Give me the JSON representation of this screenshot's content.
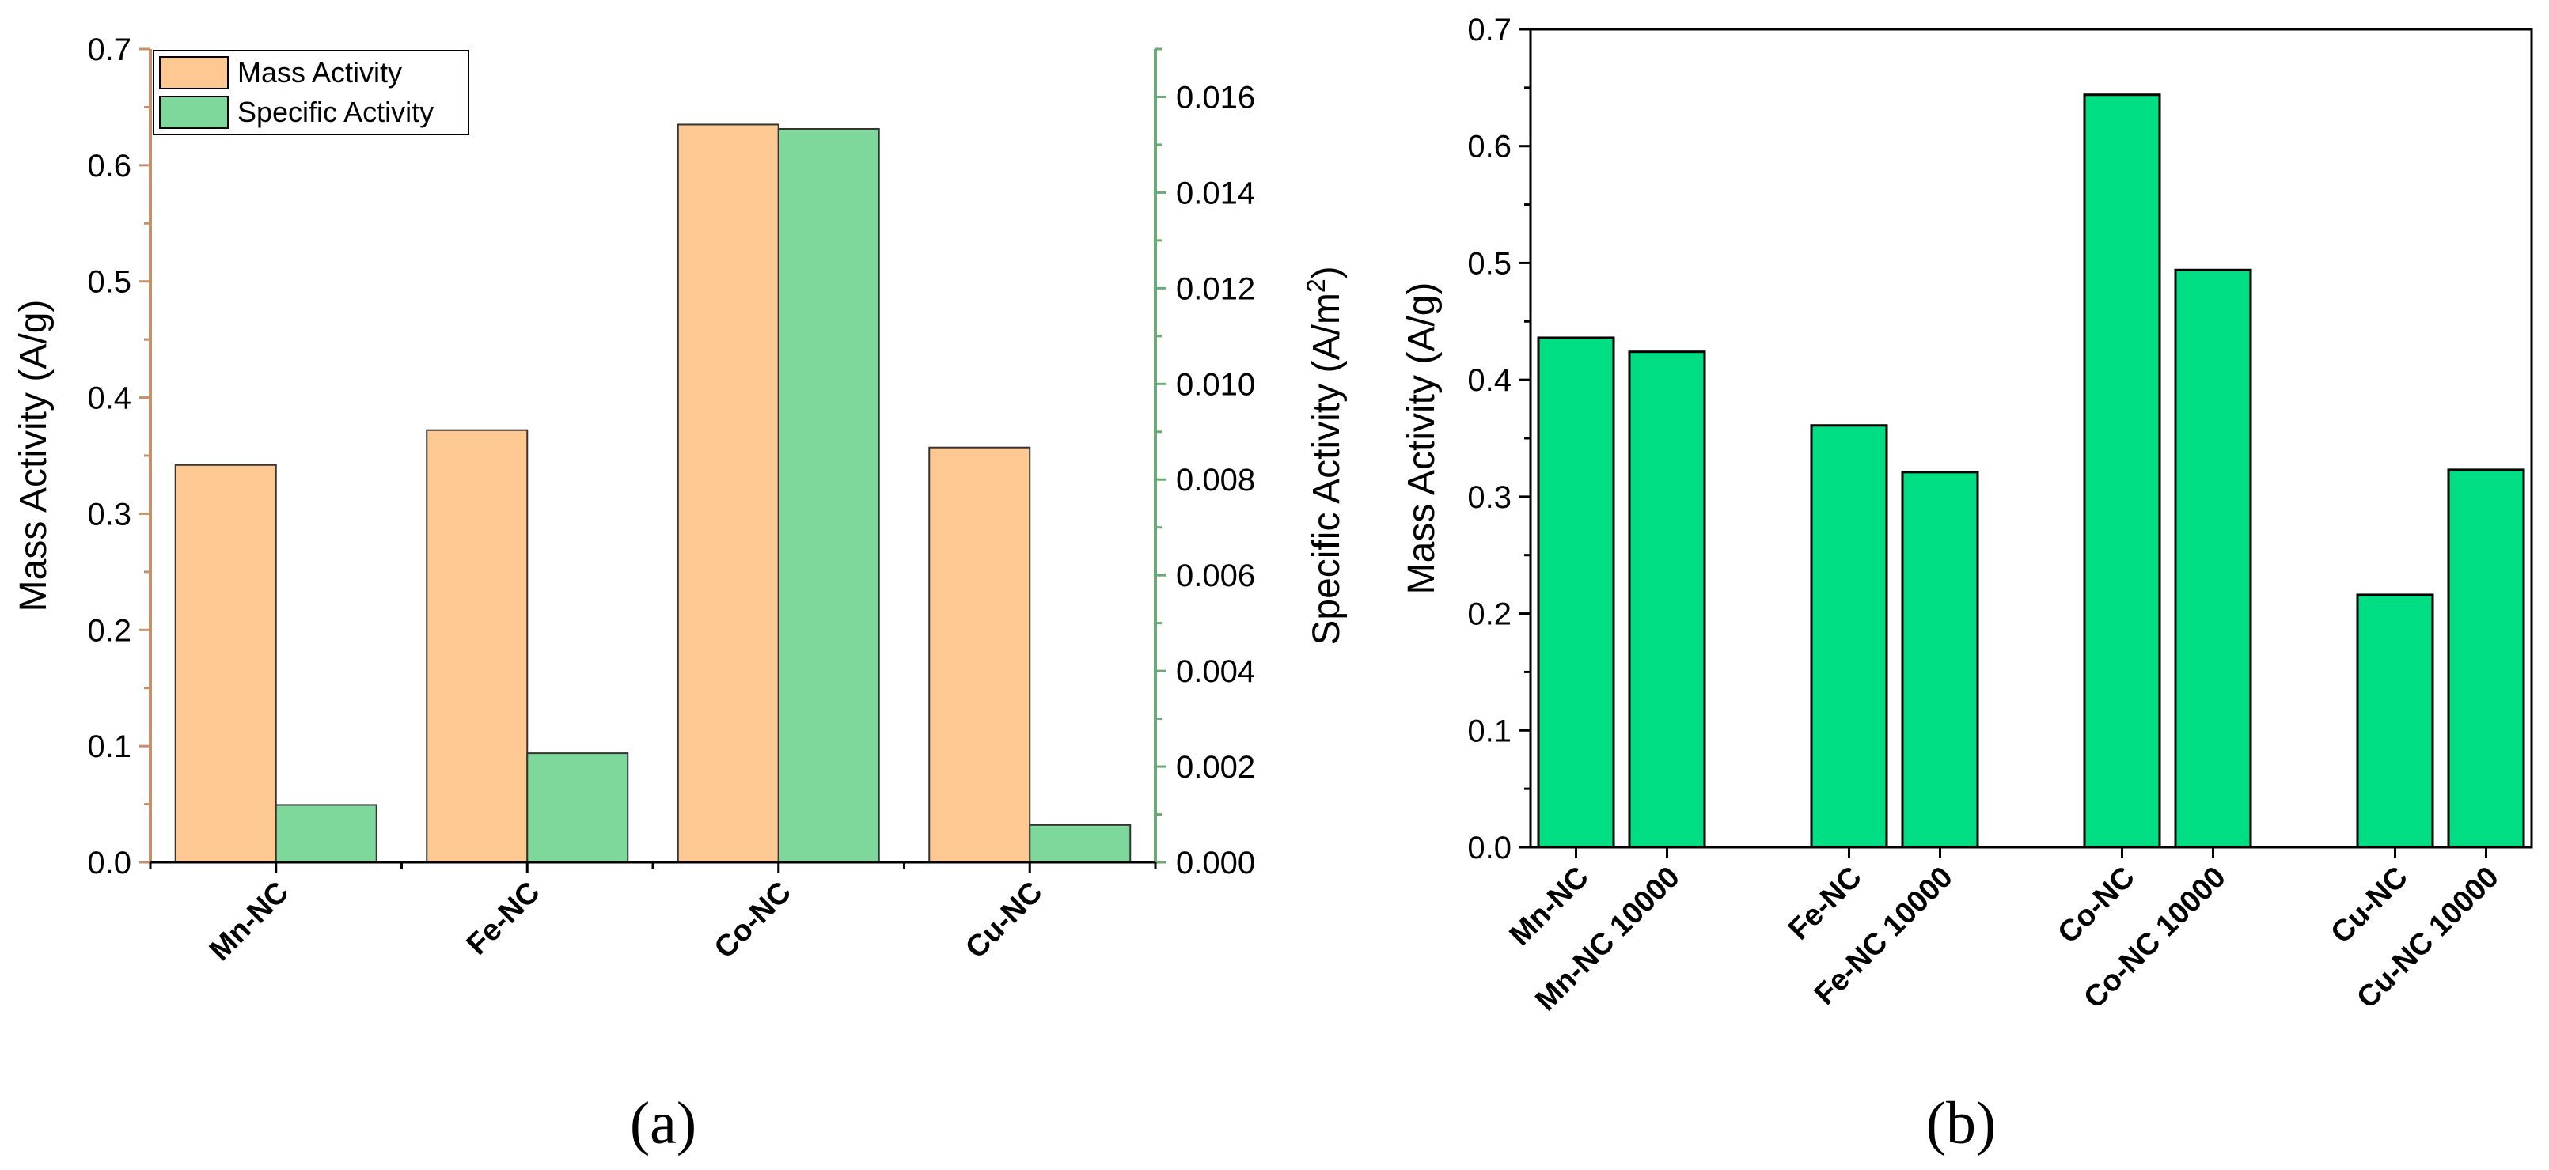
{
  "colors": {
    "mass": "#fec893",
    "specific": "#7fd89b",
    "panel_b_bar": "#00de83",
    "left_axis": "#c8906a",
    "right_axis": "#6aaa76",
    "frame": "#000000"
  },
  "chart_data": [
    {
      "id": "a",
      "type": "bar",
      "panel_label": "(a)",
      "categories": [
        "Mn-NC",
        "Fe-NC",
        "Co-NC",
        "Cu-NC"
      ],
      "series": [
        {
          "name": "Mass Activity",
          "axis": "left",
          "values": [
            0.342,
            0.372,
            0.635,
            0.357
          ]
        },
        {
          "name": "Specific Activity",
          "axis": "right",
          "values": [
            0.0012,
            0.00228,
            0.01533,
            0.00078
          ]
        }
      ],
      "ylabel": "Mass Activity (A/g)",
      "ylim": [
        0,
        0.7
      ],
      "yticks": [
        "0.0",
        "0.1",
        "0.2",
        "0.3",
        "0.4",
        "0.5",
        "0.6",
        "0.7"
      ],
      "y2label_main": "Specific Activity (A/m",
      "y2label_sup": "2",
      "y2label_end": ")",
      "y2lim": [
        0,
        0.017
      ],
      "y2ticks": [
        "0.000",
        "0.002",
        "0.004",
        "0.006",
        "0.008",
        "0.010",
        "0.012",
        "0.014",
        "0.016"
      ],
      "legend_position": "top-left"
    },
    {
      "id": "b",
      "type": "bar",
      "panel_label": "(b)",
      "categories": [
        "Mn-NC",
        "Mn-NC 10000",
        "Fe-NC",
        "Fe-NC 10000",
        "Co-NC",
        "Co-NC 10000",
        "Cu-NC",
        "Cu-NC 10000"
      ],
      "values": [
        0.436,
        0.424,
        0.361,
        0.321,
        0.644,
        0.494,
        0.216,
        0.323
      ],
      "ylabel": "Mass Activity (A/g)",
      "ylim": [
        0,
        0.7
      ],
      "yticks": [
        "0.0",
        "0.1",
        "0.2",
        "0.3",
        "0.4",
        "0.5",
        "0.6",
        "0.7"
      ]
    }
  ]
}
